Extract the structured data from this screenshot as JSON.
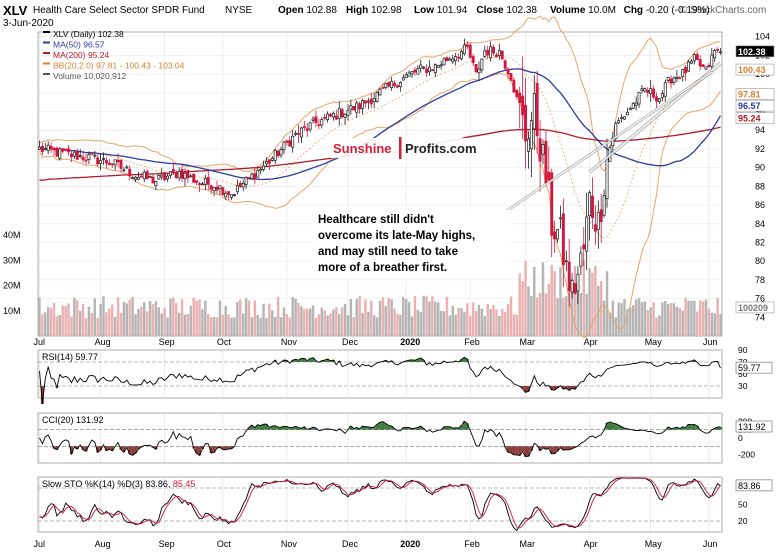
{
  "header": {
    "symbol": "XLV",
    "fund_name": "Health Care Select Sector SPDR Fund",
    "exchange": "NYSE",
    "date": "3-Jun-2020",
    "source": "© StockCharts.com",
    "ohlc": [
      {
        "label": "Open",
        "value": "102.88"
      },
      {
        "label": "High",
        "value": "102.98"
      },
      {
        "label": "Low",
        "value": "101.94"
      },
      {
        "label": "Close",
        "value": "102.38"
      },
      {
        "label": "Volume",
        "value": "10.0M"
      },
      {
        "label": "Chg",
        "value": "-0.20 (-0.19%)"
      }
    ]
  },
  "legend": [
    {
      "text": "XLV (Daily) 102.38",
      "color": "#000000"
    },
    {
      "text": "MA(50) 96.57",
      "color": "#2a3d9e"
    },
    {
      "text": "MA(200) 95.24",
      "color": "#b11c2c"
    },
    {
      "text": "BB(20,2.0) 97.81 - 100.43 - 103.04",
      "color": "#d9802a"
    },
    {
      "text": "Volume 10,020,912",
      "color": "#555555"
    }
  ],
  "watermark": {
    "part1": "Sunshine",
    "part2": "Profits.com"
  },
  "annotation": {
    "lines": [
      "Healthcare still didn't",
      "overcome its late-May highs,",
      "and may still need to take",
      "more of a breather first."
    ]
  },
  "colors": {
    "up": "#1a1a1a",
    "down": "#d4163c",
    "ma50": "#2a3d9e",
    "ma200": "#b11c2c",
    "bb": "#e6a66a",
    "vol_up": "#b5b5b5",
    "vol_down": "#eab1b1",
    "rsi_fill": "#3f7a3f",
    "cci_fill": "#8a3c3c"
  },
  "chart_data": [
    {
      "type": "candlestick",
      "title": "XLV (Daily)",
      "x_labels": [
        "Jul",
        "Aug",
        "Sep",
        "Oct",
        "Nov",
        "Dec",
        "2020",
        "Feb",
        "Mar",
        "Apr",
        "May",
        "Jun"
      ],
      "ylim": [
        72,
        104
      ],
      "y_ticks": [
        74,
        76,
        78,
        80,
        82,
        84,
        86,
        88,
        90,
        92,
        94,
        96,
        98,
        100,
        102,
        104
      ],
      "price_tags": [
        {
          "label": "102.38",
          "value": 102.38,
          "color": "#000000"
        },
        {
          "label": "100.43",
          "value": 100.43,
          "color": "#d9802a"
        },
        {
          "label": "97.81",
          "value": 97.81,
          "color": "#d9802a"
        },
        {
          "label": "96.57",
          "value": 96.57,
          "color": "#2a3d9e"
        },
        {
          "label": "95.24",
          "value": 95.24,
          "color": "#b11c2c"
        },
        {
          "label": "100209",
          "value": 75.0,
          "color": "#777777"
        }
      ],
      "close_waypoints": [
        [
          0,
          92
        ],
        [
          8,
          91.5
        ],
        [
          18,
          91
        ],
        [
          25,
          90.5
        ],
        [
          33,
          89.2
        ],
        [
          40,
          88.6
        ],
        [
          48,
          89.5
        ],
        [
          55,
          88.4
        ],
        [
          60,
          88.2
        ],
        [
          66,
          87.2
        ],
        [
          72,
          88.8
        ],
        [
          80,
          91
        ],
        [
          88,
          93.5
        ],
        [
          95,
          94.8
        ],
        [
          103,
          95.8
        ],
        [
          110,
          96.6
        ],
        [
          118,
          98.2
        ],
        [
          124,
          99.4
        ],
        [
          130,
          100.4
        ],
        [
          136,
          100.8
        ],
        [
          140,
          101.6
        ],
        [
          147,
          102.7
        ],
        [
          150,
          99.9
        ],
        [
          153,
          102.5
        ],
        [
          158,
          102.4
        ],
        [
          162,
          99.8
        ],
        [
          165,
          96
        ],
        [
          167,
          93.5
        ],
        [
          170,
          96
        ],
        [
          172,
          92.5
        ],
        [
          174,
          89
        ],
        [
          176,
          84
        ],
        [
          179,
          82.5
        ],
        [
          181,
          79
        ],
        [
          183,
          76.5
        ],
        [
          185,
          78.5
        ],
        [
          187,
          81.2
        ],
        [
          189,
          86.5
        ],
        [
          192,
          84
        ],
        [
          195,
          91
        ],
        [
          198,
          94.5
        ],
        [
          202,
          96
        ],
        [
          208,
          98.3
        ],
        [
          213,
          97.5
        ],
        [
          217,
          99.6
        ],
        [
          221,
          100
        ],
        [
          225,
          101.5
        ],
        [
          229,
          100.3
        ],
        [
          232,
          102.4
        ],
        [
          234,
          102.38
        ]
      ],
      "volume_ylim": [
        0,
        40
      ],
      "volume_ticks": [
        10,
        20,
        30,
        40
      ],
      "volume_tick_suffix": "M"
    },
    {
      "type": "line",
      "title": "RSI(14)",
      "last_value": "59.77",
      "ylim": [
        10,
        90
      ],
      "y_ticks": [
        30,
        50,
        70,
        90
      ],
      "reference_lines": [
        30,
        70
      ]
    },
    {
      "type": "line",
      "title": "CCI(20)",
      "last_value": "131.92",
      "ylim": [
        -300,
        300
      ],
      "y_ticks": [
        -200,
        0,
        100,
        200
      ],
      "reference_lines": [
        -100,
        100
      ]
    },
    {
      "type": "line",
      "title": "Slow STO %K(14) %D(3)",
      "k_value": "83.86",
      "d_value": "85.45",
      "ylim": [
        0,
        100
      ],
      "y_ticks": [
        20,
        50,
        80
      ],
      "reference_lines": [
        20,
        80
      ]
    }
  ]
}
